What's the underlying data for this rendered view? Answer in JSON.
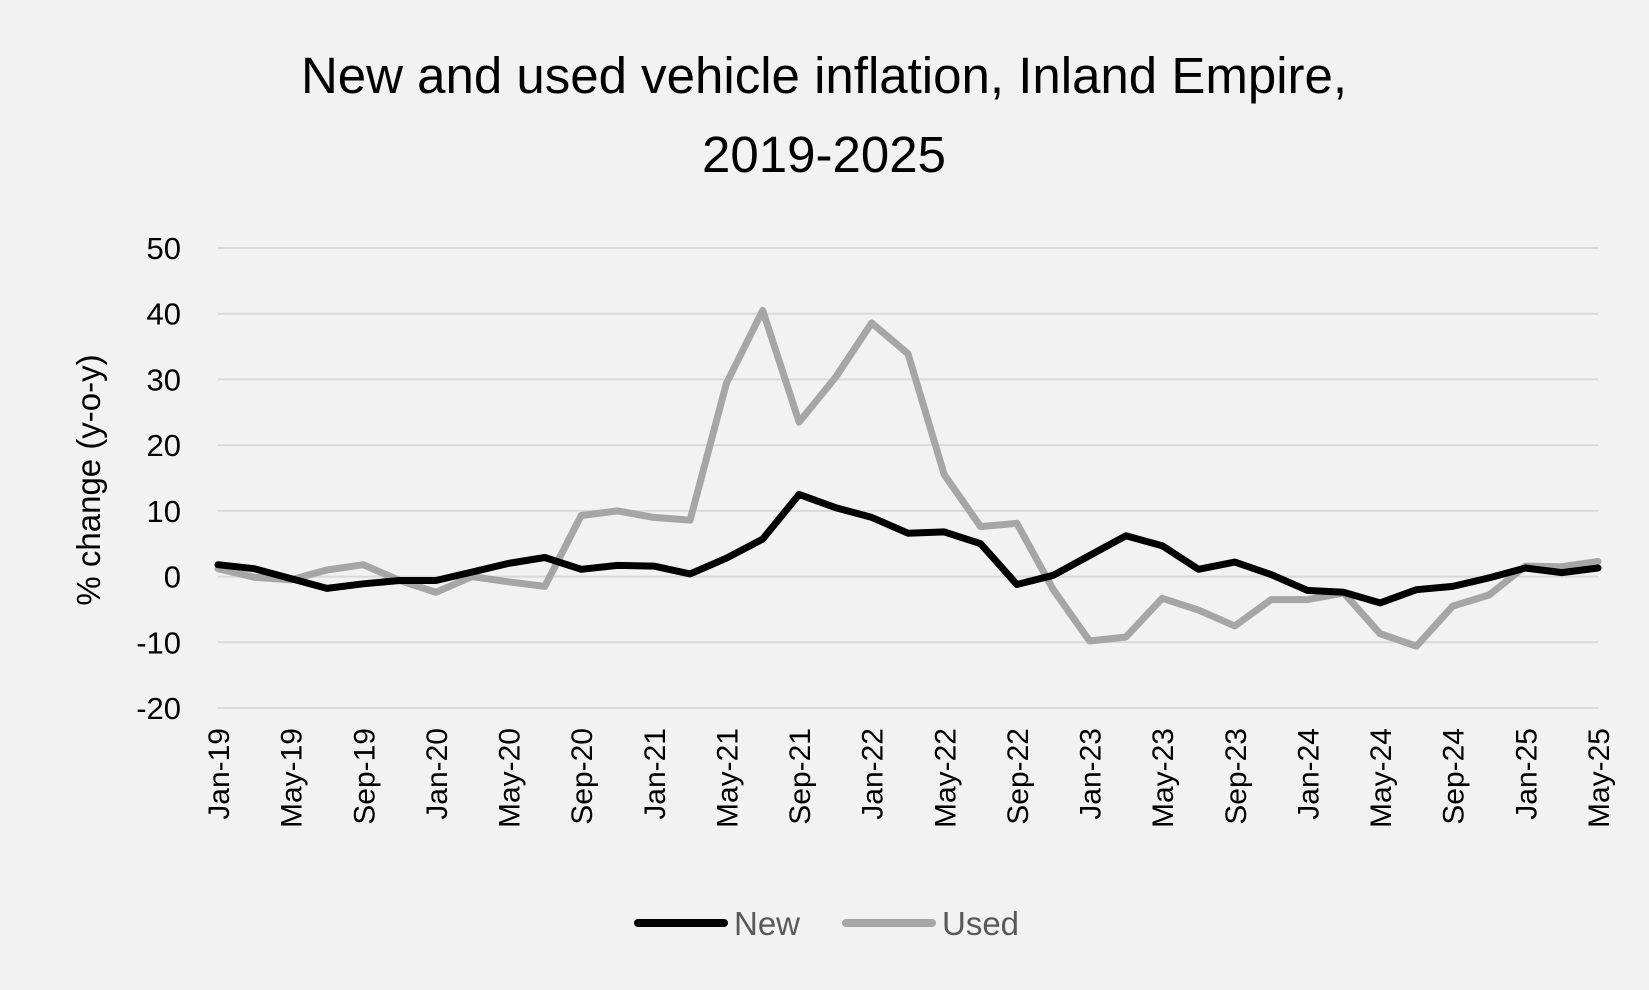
{
  "chart_data": {
    "type": "line",
    "title_lines": [
      "New and used vehicle inflation, Inland Empire,",
      "2019-2025"
    ],
    "ylabel": "% change (y-o-y)",
    "ylim": [
      -20,
      50
    ],
    "yticks": [
      "50",
      "40",
      "30",
      "20",
      "10",
      "0",
      "-10",
      "-20"
    ],
    "ytick_values": [
      50,
      40,
      30,
      20,
      10,
      0,
      -10,
      -20
    ],
    "grid": true,
    "legend_position": "bottom",
    "x": [
      "Jan-19",
      "Mar-19",
      "May-19",
      "Jul-19",
      "Sep-19",
      "Nov-19",
      "Jan-20",
      "Mar-20",
      "May-20",
      "Jul-20",
      "Sep-20",
      "Nov-20",
      "Jan-21",
      "Mar-21",
      "May-21",
      "Jul-21",
      "Sep-21",
      "Nov-21",
      "Jan-22",
      "Mar-22",
      "May-22",
      "Jul-22",
      "Sep-22",
      "Nov-22",
      "Jan-23",
      "Mar-23",
      "May-23",
      "Jul-23",
      "Sep-23",
      "Nov-23",
      "Jan-24",
      "Mar-24",
      "May-24",
      "Jul-24",
      "Sep-24",
      "Nov-24",
      "Jan-25",
      "Mar-25",
      "May-25"
    ],
    "xtick_labels": [
      "Jan-19",
      "May-19",
      "Sep-19",
      "Jan-20",
      "May-20",
      "Sep-20",
      "Jan-21",
      "May-21",
      "Sep-21",
      "Jan-22",
      "May-22",
      "Sep-22",
      "Jan-23",
      "May-23",
      "Sep-23",
      "Jan-24",
      "May-24",
      "Sep-24",
      "Jan-25",
      "May-25"
    ],
    "series": [
      {
        "name": "New",
        "color": "#000000",
        "values": [
          1.8,
          1.2,
          -0.3,
          -1.8,
          -1.1,
          -0.6,
          -0.6,
          0.7,
          2.0,
          2.9,
          1.1,
          1.7,
          1.6,
          0.4,
          2.8,
          5.7,
          12.5,
          10.5,
          9.0,
          6.6,
          6.8,
          5.0,
          -1.2,
          0.2,
          3.2,
          6.2,
          4.7,
          1.1,
          2.2,
          0.3,
          -2.1,
          -2.4,
          -4.0,
          -2.0,
          -1.5,
          -0.2,
          1.3,
          0.6,
          1.3
        ]
      },
      {
        "name": "Used",
        "color": "#a6a6a6",
        "values": [
          1.2,
          -0.1,
          -0.5,
          1.0,
          1.8,
          -0.6,
          -2.4,
          0.0,
          -0.8,
          -1.5,
          9.3,
          10.0,
          9.0,
          8.6,
          29.4,
          40.5,
          23.5,
          30.3,
          38.6,
          33.9,
          15.5,
          7.6,
          8.1,
          -2.0,
          -9.8,
          -9.2,
          -3.3,
          -5.1,
          -7.5,
          -3.5,
          -3.5,
          -2.5,
          -8.7,
          -10.6,
          -4.5,
          -2.8,
          1.6,
          1.5,
          2.3
        ]
      }
    ]
  }
}
